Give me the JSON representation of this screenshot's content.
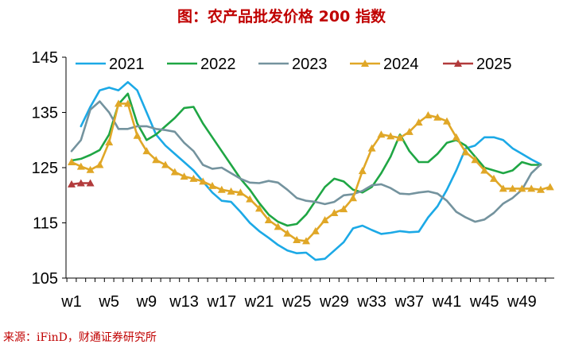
{
  "title": "图：农产品批发价格 200 指数",
  "source": "来源：iFinD，财通证券研究所",
  "chart_data": {
    "type": "line",
    "title": "图：农产品批发价格 200 指数",
    "xlabel": "",
    "ylabel": "",
    "ylim": [
      105,
      145
    ],
    "yticks": [
      105,
      115,
      125,
      135,
      145
    ],
    "grid": false,
    "legend_position": "top",
    "x_count": 52,
    "x_tick_labels": [
      {
        "week": 1,
        "label": "w1"
      },
      {
        "week": 5,
        "label": "w5"
      },
      {
        "week": 9,
        "label": "w9"
      },
      {
        "week": 13,
        "label": "w13"
      },
      {
        "week": 17,
        "label": "w17"
      },
      {
        "week": 21,
        "label": "w21"
      },
      {
        "week": 25,
        "label": "w25"
      },
      {
        "week": 29,
        "label": "w29"
      },
      {
        "week": 33,
        "label": "w33"
      },
      {
        "week": 37,
        "label": "w37"
      },
      {
        "week": 41,
        "label": "w41"
      },
      {
        "week": 45,
        "label": "w45"
      },
      {
        "week": 49,
        "label": "w49"
      }
    ],
    "series": [
      {
        "name": "2021",
        "color": "#1ca9e6",
        "marker": "none",
        "start_week": 2,
        "values": [
          132.5,
          136,
          139,
          139.5,
          139,
          140.5,
          139,
          135,
          131,
          129,
          127.5,
          126,
          124.5,
          122.5,
          120.5,
          119,
          118.8,
          117,
          115,
          113.5,
          112.3,
          111,
          110,
          109.5,
          109.6,
          108.3,
          108.5,
          110,
          111.5,
          114,
          114.5,
          113.7,
          113,
          113.2,
          113.5,
          113.3,
          113.4,
          116,
          118,
          121,
          124.5,
          128.5,
          129,
          130.5,
          130.5,
          130,
          128.5,
          127.5,
          126.5,
          125.6
        ]
      },
      {
        "name": "2022",
        "color": "#1fa644",
        "marker": "none",
        "start_week": 1,
        "values": [
          126.3,
          126.6,
          127.3,
          128.2,
          131,
          136.5,
          138.4,
          133,
          130,
          131,
          132.5,
          134,
          135.8,
          136,
          133,
          130.5,
          128,
          125.5,
          123,
          121,
          118.6,
          116.5,
          115.2,
          114.5,
          114.8,
          116.5,
          119,
          121.5,
          123,
          122.5,
          121,
          120.5,
          121.5,
          124,
          127,
          131,
          128,
          126,
          126,
          127.5,
          129.5,
          130,
          129,
          127,
          125,
          124.5,
          124,
          124.5,
          126,
          125.5,
          125.5
        ]
      },
      {
        "name": "2023",
        "color": "#74939e",
        "marker": "none",
        "start_week": 1,
        "values": [
          128,
          130,
          135.5,
          137,
          135,
          132,
          132,
          132.5,
          132.5,
          132,
          131.8,
          131.5,
          129.5,
          128,
          125.5,
          124.8,
          125,
          124,
          123,
          122.3,
          122.2,
          122.6,
          122.3,
          121,
          119.5,
          119,
          118.8,
          118.4,
          118.8,
          120,
          120.2,
          120.8,
          121.8,
          122,
          121.3,
          120.3,
          120.2,
          120.5,
          120.7,
          120.3,
          119,
          117,
          116,
          115.2,
          115.6,
          116.8,
          118.5,
          119.5,
          121,
          124,
          125.6
        ]
      },
      {
        "name": "2024",
        "color": "#e0a727",
        "marker": "triangle",
        "start_week": 1,
        "values": [
          126,
          125.2,
          124.6,
          125.5,
          129.6,
          136.6,
          136.6,
          130.8,
          128,
          126.4,
          125.5,
          124.2,
          123.4,
          123,
          122.5,
          121.7,
          121,
          120.7,
          120.5,
          119.3,
          117.6,
          115.5,
          114.3,
          113.1,
          111.9,
          111.7,
          113.5,
          115.5,
          116.8,
          117.5,
          119.5,
          124.4,
          128.5,
          131,
          130.7,
          130.4,
          131.5,
          133.2,
          134.5,
          134.1,
          133.4,
          130.5,
          127.8,
          126.4,
          124.5,
          123,
          121.2,
          121.2,
          121.2,
          121.2,
          121,
          121.5
        ]
      },
      {
        "name": "2025",
        "color": "#b23b3c",
        "marker": "triangle",
        "start_week": 1,
        "values": [
          122,
          122.2,
          122.2
        ]
      }
    ]
  }
}
